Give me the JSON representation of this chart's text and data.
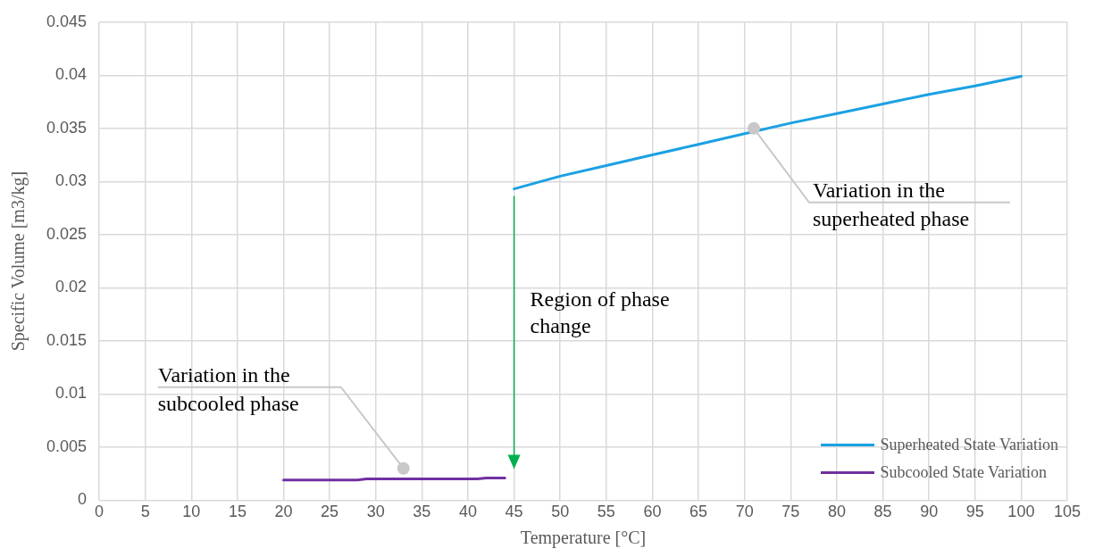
{
  "chart_data": {
    "type": "line",
    "xlabel": "Temperature [°C]",
    "ylabel": "Specific Volume [m3/kg]",
    "series": [
      {
        "name": "Superheated State Variation",
        "color": "#1ba1e2",
        "x": [
          45,
          50,
          55,
          60,
          65,
          70,
          75,
          80,
          85,
          90,
          95,
          100
        ],
        "values": [
          0.0293,
          0.0305,
          0.0315,
          0.0325,
          0.0335,
          0.0345,
          0.0355,
          0.0364,
          0.0373,
          0.0382,
          0.039,
          0.0399
        ]
      },
      {
        "name": "Subcooled State Variation",
        "color": "#7030a0",
        "x": [
          20,
          28,
          29,
          41,
          42,
          44
        ],
        "values": [
          0.0019,
          0.0019,
          0.002,
          0.002,
          0.0021,
          0.0021
        ]
      }
    ],
    "xlim": [
      0,
      105
    ],
    "xticks": [
      0,
      5,
      10,
      15,
      20,
      25,
      30,
      35,
      40,
      45,
      50,
      55,
      60,
      65,
      70,
      75,
      80,
      85,
      90,
      95,
      100,
      105
    ],
    "ylim": [
      0,
      0.045
    ],
    "yticks": [
      0,
      0.005,
      0.01,
      0.015,
      0.02,
      0.025,
      0.03,
      0.035,
      0.04,
      0.045
    ],
    "annotations": [
      {
        "text": "Variation in the superheated phase",
        "x": 71,
        "y": 0.035
      },
      {
        "text": "Variation in the subcooled phase",
        "x": 33,
        "y": 0.003
      },
      "Region of phase change"
    ],
    "grid": true,
    "legend": "bottom right",
    "marker": "none",
    "line_style": "solid"
  }
}
